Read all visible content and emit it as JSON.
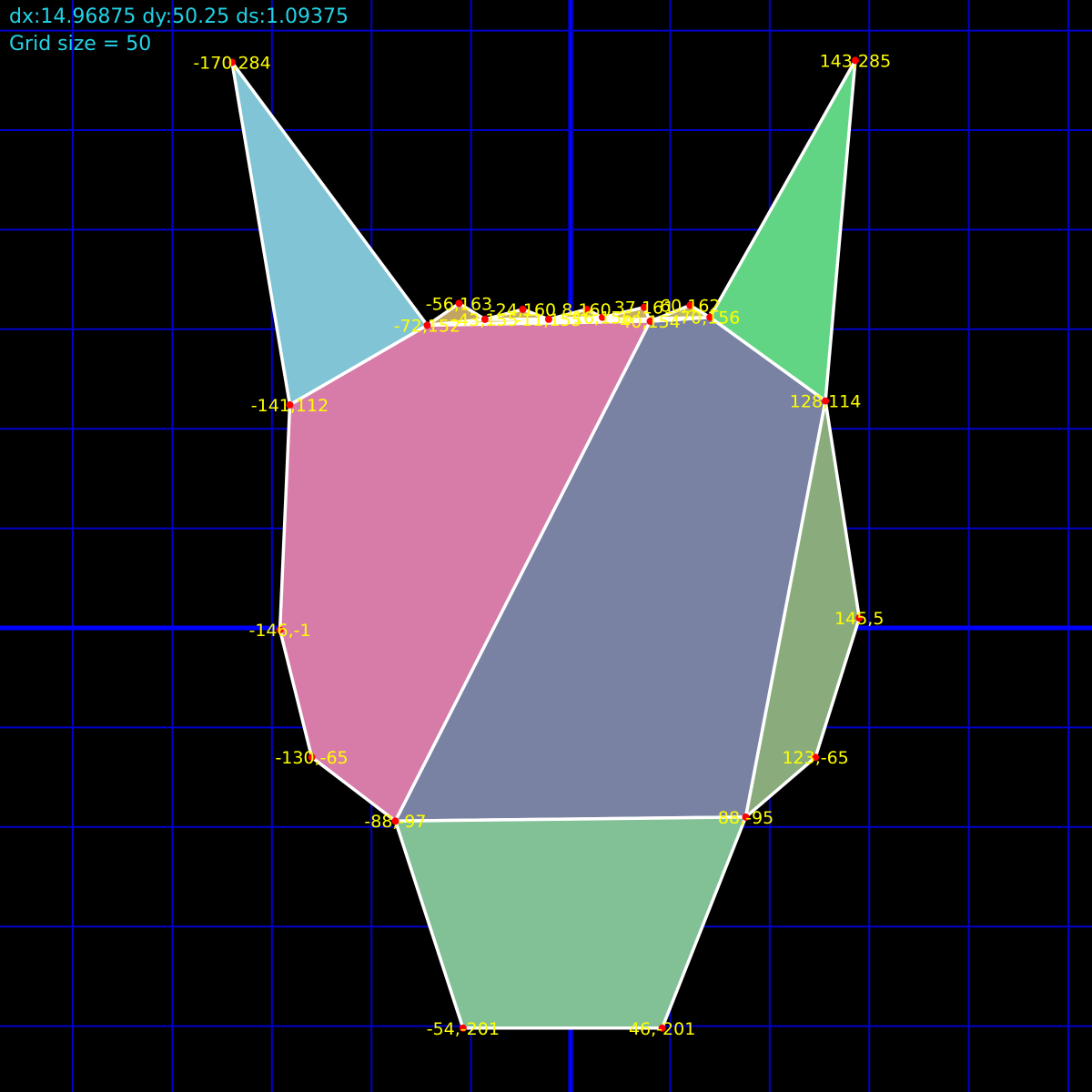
{
  "hud": {
    "offsets": "dx:14.96875 dy:50.25 ds:1.09375",
    "grid_label": "Grid size = 50"
  },
  "colors": {
    "background": "#000000",
    "grid_line": "#0000cc",
    "axis_line": "#0000ff",
    "hud_text": "#22d3e6",
    "vertex_label": "#ffff00",
    "vertex_dot": "#ff0000",
    "edge": "#ffffff"
  },
  "grid": {
    "size": 50,
    "origin_x": 0,
    "origin_y": 0
  },
  "vertices": [
    {
      "id": "v1",
      "x": -170,
      "y": 284,
      "label": "-170,284"
    },
    {
      "id": "v2",
      "x": 143,
      "y": 285,
      "label": "143,285"
    },
    {
      "id": "v3",
      "x": -56,
      "y": 163,
      "label": "-56,163"
    },
    {
      "id": "v4",
      "x": -72,
      "y": 152,
      "label": "-72,152"
    },
    {
      "id": "v5",
      "x": -43,
      "y": 155,
      "label": "-43,155"
    },
    {
      "id": "v6",
      "x": -24,
      "y": 160,
      "label": "-24,160"
    },
    {
      "id": "v7",
      "x": -11,
      "y": 155,
      "label": "-11,155"
    },
    {
      "id": "v8",
      "x": 8,
      "y": 160,
      "label": "8,160"
    },
    {
      "id": "v9",
      "x": 16,
      "y": 156,
      "label": "16,156"
    },
    {
      "id": "v10",
      "x": 37,
      "y": 161,
      "label": "37,161"
    },
    {
      "id": "v11",
      "x": 40,
      "y": 154,
      "label": "40,154"
    },
    {
      "id": "v12",
      "x": 60,
      "y": 162,
      "label": "60,162"
    },
    {
      "id": "v13",
      "x": 70,
      "y": 156,
      "label": "70,156"
    },
    {
      "id": "v14",
      "x": -141,
      "y": 112,
      "label": "-141,112"
    },
    {
      "id": "v15",
      "x": 128,
      "y": 114,
      "label": "128,114"
    },
    {
      "id": "v16",
      "x": -146,
      "y": -1,
      "label": "-146,-1"
    },
    {
      "id": "v17",
      "x": 145,
      "y": 5,
      "label": "145,5"
    },
    {
      "id": "v18",
      "x": -130,
      "y": -65,
      "label": "-130,-65"
    },
    {
      "id": "v19",
      "x": 123,
      "y": -65,
      "label": "123,-65"
    },
    {
      "id": "v20",
      "x": -88,
      "y": -97,
      "label": "-88,-97"
    },
    {
      "id": "v21",
      "x": 88,
      "y": -95,
      "label": "88,-95"
    },
    {
      "id": "v22",
      "x": -54,
      "y": -201,
      "label": "-54,-201"
    },
    {
      "id": "v23",
      "x": 46,
      "y": -201,
      "label": "46,-201"
    }
  ],
  "polygons": [
    {
      "name": "left-ear",
      "fill": "#80c4d6",
      "points": [
        "v1",
        "v4",
        "v14"
      ]
    },
    {
      "name": "right-ear",
      "fill": "#62d584",
      "points": [
        "v2",
        "v15",
        "v13"
      ]
    },
    {
      "name": "left-face",
      "fill": "#d77ba9",
      "points": [
        "v4",
        "v11",
        "v20",
        "v18",
        "v16",
        "v14"
      ]
    },
    {
      "name": "center-face",
      "fill": "#7a82a4",
      "points": [
        "v11",
        "v13",
        "v15",
        "v21",
        "v20"
      ]
    },
    {
      "name": "right-cheek",
      "fill": "#8aac7c",
      "points": [
        "v15",
        "v17",
        "v19",
        "v21"
      ]
    },
    {
      "name": "muzzle",
      "fill": "#82c096",
      "points": [
        "v20",
        "v21",
        "v23",
        "v22"
      ]
    },
    {
      "name": "brow-1",
      "fill": "#c2a464",
      "points": [
        "v4",
        "v3",
        "v5"
      ]
    },
    {
      "name": "brow-2",
      "fill": "#c9b060",
      "points": [
        "v5",
        "v6",
        "v7"
      ]
    },
    {
      "name": "brow-3",
      "fill": "#c9b060",
      "points": [
        "v7",
        "v8",
        "v9"
      ]
    },
    {
      "name": "brow-4",
      "fill": "#c9b060",
      "points": [
        "v9",
        "v10",
        "v11"
      ]
    },
    {
      "name": "brow-5",
      "fill": "#bcb466",
      "points": [
        "v11",
        "v12",
        "v13"
      ]
    },
    {
      "name": "brow-strip",
      "fill": "#d7c06a",
      "points": [
        "v4",
        "v5",
        "v7",
        "v9",
        "v11",
        "v13"
      ]
    }
  ]
}
